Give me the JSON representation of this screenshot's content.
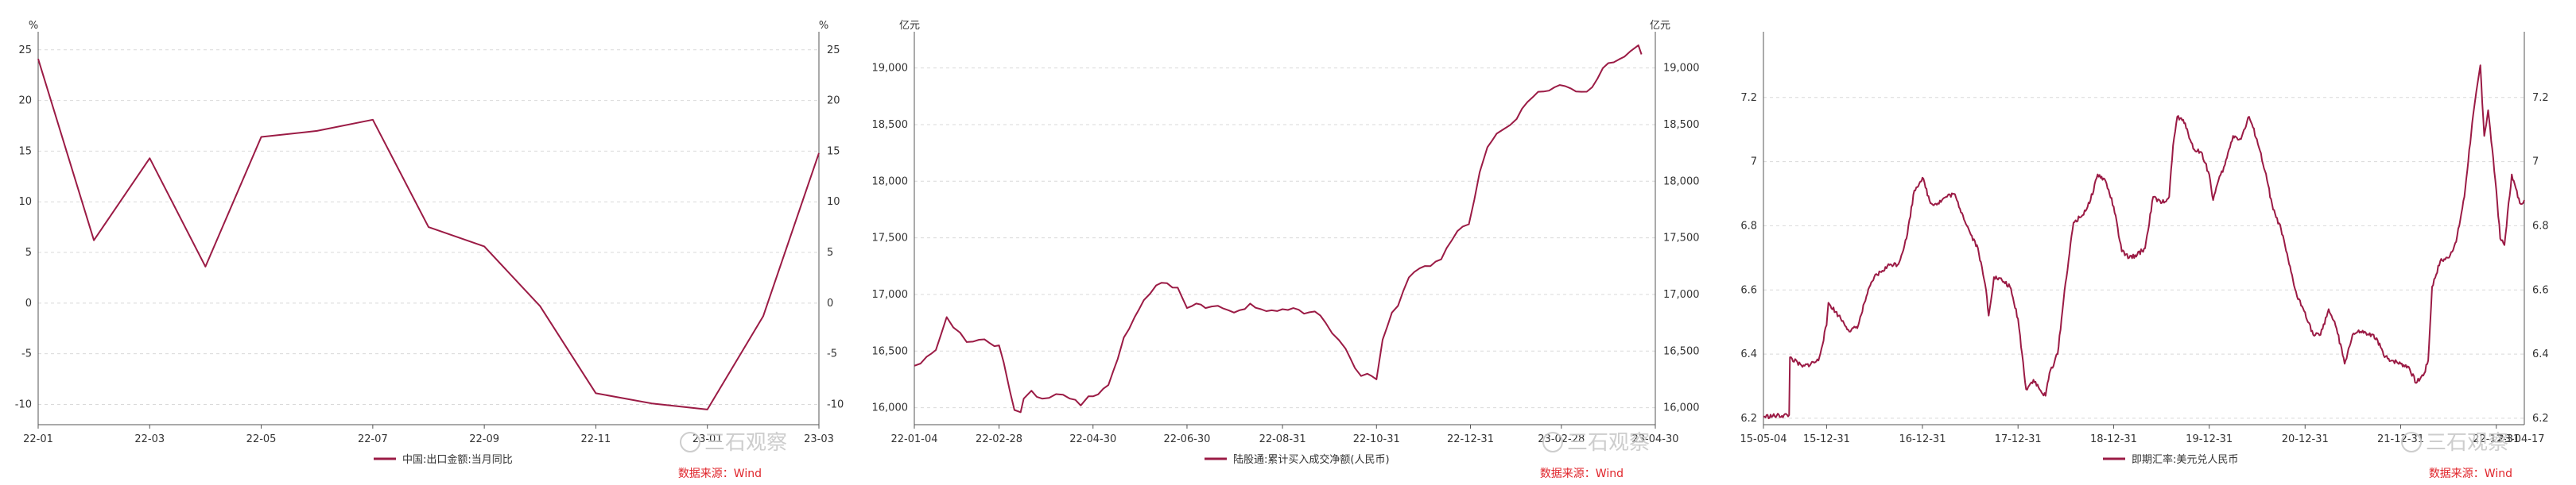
{
  "charts": [
    {
      "source_text": "数据来源：Wind",
      "watermark": "三石观察"
    },
    {
      "source_text": "数据来源：Wind",
      "watermark": "三石观察"
    },
    {
      "source_text": "数据来源：Wind",
      "watermark": "三石观察"
    }
  ],
  "colors": {
    "line": "#9b1b45",
    "grid": "#d9d9d9",
    "axis": "#555555",
    "source": "#e0252b",
    "watermark": "#c8c8c8"
  },
  "chart_data": [
    {
      "type": "line",
      "title": "",
      "y_unit_left": "%",
      "y_unit_right": "%",
      "ylim": [
        -12,
        26
      ],
      "yticks": [
        25,
        20,
        15,
        10,
        5,
        0,
        -5,
        -10
      ],
      "xlabels": [
        "22-01",
        "22-03",
        "22-05",
        "22-07",
        "22-09",
        "22-11",
        "23-01",
        "23-03"
      ],
      "x": [
        "22-01",
        "22-02",
        "22-03",
        "22-04",
        "22-05",
        "22-06",
        "22-07",
        "22-08",
        "22-09",
        "22-10",
        "22-11",
        "22-12",
        "23-01",
        "23-02",
        "23-03"
      ],
      "series": [
        {
          "name": "中国:出口金额:当月同比",
          "values": [
            24.1,
            6.2,
            14.3,
            3.6,
            16.4,
            17.0,
            18.1,
            7.5,
            5.6,
            -0.3,
            -8.9,
            -9.9,
            -10.5,
            -1.3,
            14.8
          ]
        }
      ],
      "legend": "bottom-center",
      "grid": true
    },
    {
      "type": "line",
      "title": "",
      "y_unit_left": "亿元",
      "y_unit_right": "亿元",
      "ylim": [
        15850,
        19250
      ],
      "yticks": [
        19000,
        18500,
        18000,
        17500,
        17000,
        16500,
        16000
      ],
      "yticks_right": [
        19000,
        18500,
        18000,
        17500,
        17000,
        16500,
        16000
      ],
      "xlabels": [
        "22-01-04",
        "22-02-28",
        "22-04-30",
        "22-06-30",
        "22-08-31",
        "22-10-31",
        "22-12-31",
        "23-02-28",
        "23-04-30"
      ],
      "x_start": "2022-01-04",
      "x_end": "2023-04-30",
      "series": [
        {
          "name": "陆股通:累计买入成交净额(人民币)",
          "dates": [
            "2022-01-04",
            "2022-01-12",
            "2022-01-18",
            "2022-01-25",
            "2022-02-07",
            "2022-02-15",
            "2022-02-22",
            "2022-02-28",
            "2022-03-03",
            "2022-03-07",
            "2022-03-10",
            "2022-03-14",
            "2022-03-16",
            "2022-03-21",
            "2022-03-28",
            "2022-04-06",
            "2022-04-15",
            "2022-04-22",
            "2022-04-27",
            "2022-04-30",
            "2022-05-10",
            "2022-05-16",
            "2022-05-20",
            "2022-05-27",
            "2022-06-02",
            "2022-06-10",
            "2022-06-17",
            "2022-06-24",
            "2022-06-30",
            "2022-07-06",
            "2022-07-12",
            "2022-07-20",
            "2022-07-27",
            "2022-08-03",
            "2022-08-10",
            "2022-08-17",
            "2022-08-24",
            "2022-08-31",
            "2022-09-07",
            "2022-09-14",
            "2022-09-21",
            "2022-09-28",
            "2022-10-11",
            "2022-10-17",
            "2022-10-21",
            "2022-10-25",
            "2022-10-31",
            "2022-11-04",
            "2022-11-10",
            "2022-11-14",
            "2022-11-21",
            "2022-11-28",
            "2022-12-05",
            "2022-12-12",
            "2022-12-19",
            "2022-12-26",
            "2022-12-30",
            "2023-01-06",
            "2023-01-11",
            "2023-01-17",
            "2023-01-30",
            "2023-02-06",
            "2023-02-13",
            "2023-02-20",
            "2023-02-27",
            "2023-03-06",
            "2023-03-13",
            "2023-03-20",
            "2023-03-27",
            "2023-04-03",
            "2023-04-10",
            "2023-04-14",
            "2023-04-19",
            "2023-04-21"
          ],
          "values": [
            16370,
            16450,
            16510,
            16800,
            16580,
            16600,
            16570,
            16550,
            16400,
            16150,
            15980,
            15960,
            16080,
            16150,
            16080,
            16120,
            16080,
            16020,
            16100,
            16100,
            16200,
            16430,
            16620,
            16800,
            16950,
            17080,
            17100,
            17060,
            16880,
            16920,
            16880,
            16900,
            16860,
            16860,
            16920,
            16870,
            16860,
            16870,
            16880,
            16830,
            16850,
            16750,
            16520,
            16350,
            16280,
            16300,
            16250,
            16600,
            16840,
            16900,
            17150,
            17230,
            17250,
            17310,
            17480,
            17600,
            17620,
            18080,
            18300,
            18420,
            18550,
            18700,
            18790,
            18800,
            18850,
            18820,
            18790,
            18830,
            19000,
            19050,
            19100,
            19150,
            19200,
            19120
          ]
        }
      ],
      "legend": "bottom-center",
      "grid": true
    },
    {
      "type": "line",
      "title": "",
      "ylim": [
        6.18,
        7.38
      ],
      "yticks": [
        7.2,
        7,
        6.8,
        6.6,
        6.4,
        6.2
      ],
      "ytick_labels": [
        "7.2",
        "7",
        "6.8",
        "6.6",
        "6.4",
        "6.2"
      ],
      "ytick_labels_right": [
        "7.2",
        "7",
        "6.8",
        "6.6",
        "6.4",
        "6.2"
      ],
      "xlabels": [
        "15-05-04",
        "15-12-31",
        "16-12-31",
        "17-12-31",
        "18-12-31",
        "19-12-31",
        "20-12-31",
        "21-12-31",
        "22-12-31"
      ],
      "x_start": "2015-05-04",
      "x_end": "2023-04-17",
      "x_end_label": "23-04-17",
      "series": [
        {
          "name": "即期汇率:美元兑人民币",
          "dates": [
            "2015-05-04",
            "2015-08-10",
            "2015-08-13",
            "2015-09-30",
            "2015-11-30",
            "2015-12-31",
            "2016-01-07",
            "2016-02-15",
            "2016-03-31",
            "2016-04-30",
            "2016-05-31",
            "2016-06-30",
            "2016-07-31",
            "2016-08-31",
            "2016-09-30",
            "2016-10-31",
            "2016-11-30",
            "2016-12-31",
            "2017-01-31",
            "2017-02-28",
            "2017-03-31",
            "2017-04-30",
            "2017-05-31",
            "2017-06-30",
            "2017-07-31",
            "2017-08-31",
            "2017-09-10",
            "2017-09-30",
            "2017-10-31",
            "2017-11-30",
            "2017-12-31",
            "2018-01-31",
            "2018-02-28",
            "2018-03-31",
            "2018-04-15",
            "2018-04-30",
            "2018-05-31",
            "2018-06-30",
            "2018-07-31",
            "2018-08-31",
            "2018-09-30",
            "2018-10-31",
            "2018-11-30",
            "2018-12-31",
            "2019-01-31",
            "2019-02-28",
            "2019-03-31",
            "2019-04-30",
            "2019-05-31",
            "2019-06-30",
            "2019-07-31",
            "2019-08-15",
            "2019-08-31",
            "2019-09-30",
            "2019-10-31",
            "2019-11-30",
            "2019-12-31",
            "2020-01-15",
            "2020-01-31",
            "2020-02-29",
            "2020-03-31",
            "2020-04-30",
            "2020-05-31",
            "2020-06-30",
            "2020-07-31",
            "2020-08-31",
            "2020-09-30",
            "2020-10-31",
            "2020-11-30",
            "2020-12-31",
            "2021-01-31",
            "2021-02-28",
            "2021-03-31",
            "2021-04-30",
            "2021-05-31",
            "2021-06-30",
            "2021-07-31",
            "2021-08-31",
            "2021-09-30",
            "2021-10-31",
            "2021-11-30",
            "2021-12-31",
            "2022-01-31",
            "2022-02-28",
            "2022-03-31",
            "2022-04-15",
            "2022-04-30",
            "2022-05-31",
            "2022-06-30",
            "2022-07-31",
            "2022-08-31",
            "2022-09-30",
            "2022-10-31",
            "2022-11-15",
            "2022-11-30",
            "2022-12-31",
            "2023-01-15",
            "2023-01-31",
            "2023-02-28",
            "2023-03-31",
            "2023-04-17"
          ],
          "values": [
            6.205,
            6.21,
            6.39,
            6.36,
            6.38,
            6.49,
            6.56,
            6.52,
            6.47,
            6.49,
            6.58,
            6.64,
            6.66,
            6.68,
            6.68,
            6.76,
            6.91,
            6.95,
            6.87,
            6.87,
            6.89,
            6.9,
            6.84,
            6.78,
            6.73,
            6.6,
            6.52,
            6.64,
            6.63,
            6.61,
            6.51,
            6.29,
            6.32,
            6.28,
            6.27,
            6.34,
            6.4,
            6.62,
            6.81,
            6.83,
            6.87,
            6.96,
            6.94,
            6.86,
            6.72,
            6.7,
            6.71,
            6.73,
            6.89,
            6.87,
            6.89,
            7.05,
            7.14,
            7.12,
            7.04,
            7.03,
            6.96,
            6.88,
            6.93,
            6.99,
            7.08,
            7.07,
            7.14,
            7.07,
            6.97,
            6.85,
            6.79,
            6.68,
            6.58,
            6.53,
            6.46,
            6.46,
            6.54,
            6.48,
            6.37,
            6.46,
            6.47,
            6.46,
            6.45,
            6.39,
            6.38,
            6.37,
            6.36,
            6.31,
            6.34,
            6.38,
            6.61,
            6.69,
            6.7,
            6.75,
            6.89,
            7.12,
            7.3,
            7.08,
            7.16,
            6.91,
            6.76,
            6.74,
            6.96,
            6.87,
            6.88
          ]
        }
      ],
      "legend": "bottom-center",
      "grid": true
    }
  ]
}
